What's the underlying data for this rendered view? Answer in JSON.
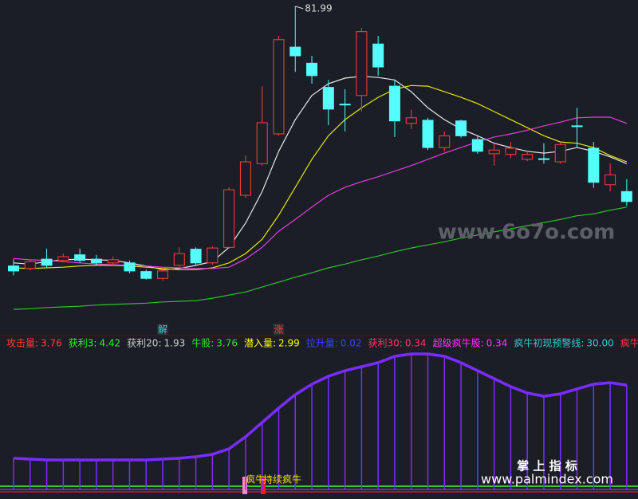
{
  "chart_data": [
    {
      "type": "candlestick",
      "ylim": [
        29,
        83
      ],
      "up_color": "#ff3c3c",
      "down_color": "#54fcfc",
      "open": [
        40.1,
        39.7,
        41.2,
        41.0,
        41.9,
        41.2,
        40.6,
        40.6,
        39.2,
        38.1,
        40.2,
        42.8,
        40.6,
        43.1,
        51.5,
        56.6,
        61.4,
        75.4,
        72.8,
        68.9,
        66.2,
        67.6,
        75.9,
        69.1,
        63.1,
        63.6,
        59.2,
        63.5,
        60.5,
        58.2,
        58.1,
        57.3,
        57.4,
        56.9,
        62.7,
        59.1,
        53.2,
        52.1
      ],
      "high": [
        41.2,
        41.1,
        42.9,
        42.1,
        42.9,
        41.9,
        41.6,
        41.0,
        39.5,
        39.9,
        43.1,
        43.1,
        43.3,
        52.8,
        57.9,
        69.1,
        77.2,
        81.99,
        74.0,
        70.1,
        68.6,
        78.5,
        77.2,
        70.1,
        65.3,
        64.0,
        61.8,
        63.7,
        61.1,
        59.9,
        60.1,
        58.6,
        59.9,
        60.1,
        65.6,
        60.1,
        56.6,
        54.1
      ],
      "low": [
        38.6,
        39.4,
        39.8,
        40.7,
        40.6,
        40.2,
        40.2,
        38.9,
        37.9,
        37.7,
        39.9,
        40.3,
        40.3,
        42.9,
        51.1,
        56.3,
        61.1,
        71.4,
        69.5,
        62.8,
        61.8,
        65.0,
        70.8,
        60.9,
        62.2,
        58.8,
        58.6,
        60.8,
        58.2,
        56.3,
        57.5,
        57.0,
        56.6,
        56.6,
        59.2,
        52.7,
        52.1,
        49.8
      ],
      "close": [
        39.3,
        40.8,
        40.2,
        41.6,
        41.0,
        40.6,
        41.1,
        39.3,
        38.1,
        39.3,
        42.1,
        40.6,
        43.0,
        52.4,
        56.9,
        63.2,
        76.6,
        74.0,
        70.8,
        65.4,
        66.1,
        77.9,
        72.2,
        63.5,
        64.0,
        59.2,
        61.1,
        61.1,
        58.6,
        58.8,
        59.1,
        58.1,
        57.3,
        59.7,
        62.6,
        53.6,
        54.8,
        50.5
      ],
      "series": [
        {
          "color": "#e8e8e8",
          "values": [
            40.6,
            40.4,
            40.8,
            41.1,
            41.2,
            41.1,
            41.0,
            40.6,
            40.1,
            39.5,
            39.7,
            40.2,
            40.8,
            43.1,
            47.0,
            52.1,
            58.6,
            63.7,
            67.6,
            69.5,
            70.4,
            70.7,
            70.5,
            70.1,
            68.2,
            65.6,
            63.7,
            62.2,
            61.1,
            59.9,
            59.2,
            58.6,
            58.3,
            58.6,
            59.2,
            58.6,
            57.7,
            56.6
          ]
        },
        {
          "color": "#e6e600",
          "values": [
            39.8,
            39.7,
            39.8,
            39.9,
            40.1,
            40.2,
            40.2,
            40.1,
            39.9,
            39.7,
            39.5,
            39.5,
            39.8,
            40.6,
            42.1,
            44.4,
            48.3,
            52.8,
            57.3,
            61.1,
            63.7,
            65.6,
            67.3,
            68.6,
            69.2,
            69.1,
            68.2,
            67.3,
            66.3,
            65.0,
            63.7,
            62.4,
            61.1,
            60.1,
            59.9,
            59.2,
            57.9,
            56.9
          ]
        },
        {
          "color": "#e040e0",
          "values": [
            41.3,
            41.1,
            41.0,
            40.8,
            40.6,
            40.4,
            40.3,
            40.2,
            40.1,
            39.9,
            39.8,
            39.7,
            39.7,
            39.9,
            41.2,
            43.1,
            45.7,
            47.6,
            49.6,
            51.5,
            52.8,
            53.7,
            54.5,
            55.4,
            56.3,
            57.3,
            58.3,
            59.2,
            60.1,
            60.9,
            61.4,
            62.0,
            62.7,
            63.3,
            64.0,
            64.1,
            64.1,
            63.1
          ]
        },
        {
          "color": "#30c030",
          "values": [
            33.1,
            33.2,
            33.4,
            33.5,
            33.6,
            33.8,
            33.9,
            34.0,
            34.1,
            34.3,
            34.4,
            34.5,
            34.9,
            35.4,
            35.9,
            36.7,
            37.5,
            38.3,
            39.0,
            39.8,
            40.4,
            41.1,
            41.7,
            42.4,
            43.0,
            43.5,
            44.0,
            44.6,
            45.1,
            45.6,
            46.1,
            46.6,
            47.1,
            47.6,
            48.2,
            48.5,
            49.1,
            49.6
          ]
        }
      ],
      "signals": [
        {
          "text": "解",
          "color": "#33cccc"
        },
        {
          "text": "涨",
          "color": "#ff3c3c"
        }
      ]
    },
    {
      "type": "line",
      "ylim": [
        0,
        100
      ],
      "legend": [
        {
          "name": "攻击量:",
          "value": 3.76,
          "color": "#ff3b3b"
        },
        {
          "name": "获利3:",
          "value": 4.42,
          "color": "#33ee33"
        },
        {
          "name": "获利20:",
          "value": 1.93,
          "color": "#cccccc"
        },
        {
          "name": "牛股:",
          "value": 3.76,
          "color": "#33dd33"
        },
        {
          "name": "潜入量:",
          "value": 2.99,
          "color": "#ffff00"
        },
        {
          "name": "拉升量:",
          "value": 0.02,
          "color": "#3344ff"
        },
        {
          "name": "获利30:",
          "value": 0.34,
          "color": "#ff3366"
        },
        {
          "name": "超级疯牛股:",
          "value": 0.34,
          "color": "#ff33ff"
        },
        {
          "name": "疯牛初现预警线:",
          "value": {
            "value": 30,
            "label": "30.00"
          },
          "color": "#33cccc"
        },
        {
          "name": "疯牛极端预警线",
          "color": "#ff3b3b"
        }
      ],
      "series": [
        {
          "color": "#7a2cff",
          "sticks": true,
          "values": [
            22.9,
            22.3,
            21.7,
            21.7,
            21.7,
            21.7,
            21.7,
            21.7,
            21.7,
            22.3,
            22.9,
            24.0,
            25.7,
            29.7,
            38.3,
            48.6,
            58.9,
            68.6,
            76.0,
            81.7,
            85.7,
            88.6,
            91.4,
            96.0,
            97.7,
            97.7,
            96.0,
            91.4,
            85.7,
            80.0,
            74.3,
            69.7,
            67.4,
            69.1,
            72.6,
            76.0,
            77.1,
            75.4
          ]
        }
      ],
      "signals": [
        {
          "text": "疯牛",
          "color": "#e6e600"
        },
        {
          "text": "持续疯牛",
          "color": "#e6e600"
        }
      ]
    }
  ],
  "watermark": "www.6o7o.com",
  "brand": "掌 上 指 标",
  "site": "www.palmindex.com"
}
